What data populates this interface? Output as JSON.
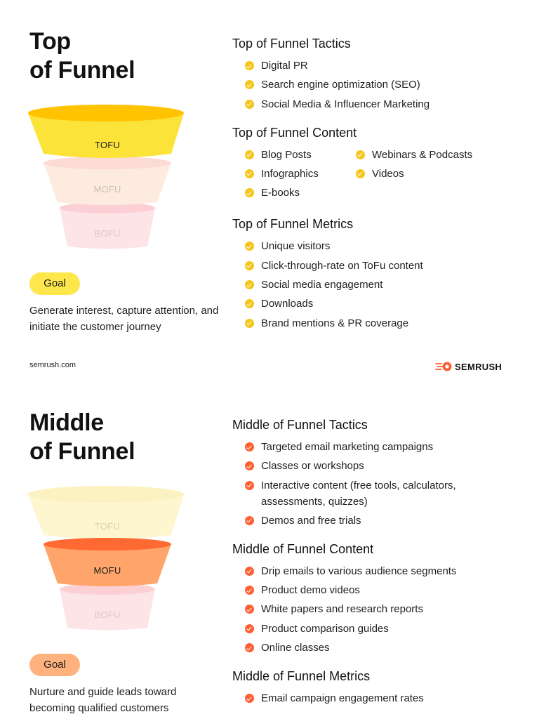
{
  "top": {
    "title_line1": "Top",
    "title_line2": "of Funnel",
    "funnel": {
      "tofu": "TOFU",
      "mofu": "MOFU",
      "bofu": "BOFU"
    },
    "goal_label": "Goal",
    "goal_desc": "Generate interest, capture attention, and initiate the customer journey",
    "tactics": {
      "heading": "Top of Funnel Tactics",
      "items": [
        "Digital PR",
        "Search engine optimization (SEO)",
        "Social Media & Influencer Marketing"
      ]
    },
    "content": {
      "heading": "Top of Funnel Content",
      "items": [
        "Blog Posts",
        "Webinars & Podcasts",
        "Infographics",
        "Videos",
        "E-books"
      ]
    },
    "metrics": {
      "heading": "Top of Funnel Metrics",
      "items": [
        "Unique visitors",
        "Click-through-rate on ToFu content",
        "Social media engagement",
        "Downloads",
        "Brand mentions & PR coverage"
      ]
    },
    "footer_url": "semrush.com",
    "logo_text": "SEMRUSH"
  },
  "middle": {
    "title_line1": "Middle",
    "title_line2": "of Funnel",
    "funnel": {
      "tofu": "TOFU",
      "mofu": "MOFU",
      "bofu": "BOFU"
    },
    "goal_label": "Goal",
    "goal_desc": "Nurture and guide leads toward becoming qualified customers",
    "tactics": {
      "heading": "Middle of Funnel Tactics",
      "items": [
        "Targeted email marketing campaigns",
        "Classes or workshops",
        "Interactive content (free tools, calculators, assessments, quizzes)",
        "Demos and free trials"
      ]
    },
    "content": {
      "heading": "Middle of Funnel Content",
      "items": [
        "Drip emails to various audience segments",
        "Product demo videos",
        "White papers and research reports",
        "Product comparison guides",
        "Online classes"
      ]
    },
    "metrics": {
      "heading": "Middle of Funnel Metrics",
      "items": [
        "Email campaign engagement rates"
      ]
    }
  },
  "colors": {
    "yellow_accent": "#f5c51a",
    "orange_accent": "#ff5f32",
    "tofu_active": "#fce33a",
    "mofu_active": "#ffa56b",
    "goal_yellow": "#fde74c",
    "goal_orange": "#ffb27d"
  }
}
